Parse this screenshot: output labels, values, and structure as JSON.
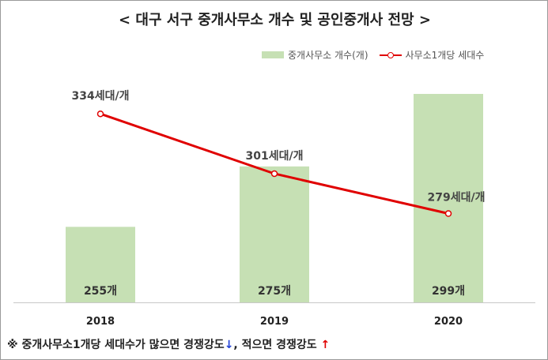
{
  "title": "< 대구 서구 중개사무소 개수 및 공인중개사 전망 >",
  "legend": {
    "bar_label": "중개사무소 개수(개)",
    "line_label": "사무소1개당 세대수"
  },
  "footnote": {
    "part1": "※ 중개사무소1개당 세대수가 많으면 경쟁강도",
    "arrow1": "↓",
    "part2": ", 적으면 경쟁강도 ",
    "arrow2": "↑"
  },
  "chart_data": {
    "type": "bar",
    "categories": [
      "2018",
      "2019",
      "2020"
    ],
    "series": [
      {
        "name": "중개사무소 개수(개)",
        "type": "bar",
        "values": [
          255,
          275,
          299
        ],
        "labels": [
          "255개",
          "275개",
          "299개"
        ],
        "color": "#c6e0b4"
      },
      {
        "name": "사무소1개당 세대수",
        "type": "line",
        "values": [
          334,
          301,
          279
        ],
        "labels": [
          "334세대/개",
          "301세대/개",
          "279세대/개"
        ],
        "color": "#e00000"
      }
    ],
    "bar_axis_range": [
      230,
      305
    ],
    "line_axis_range": [
      230,
      355
    ],
    "grid": false,
    "legend_position": "top-right"
  }
}
